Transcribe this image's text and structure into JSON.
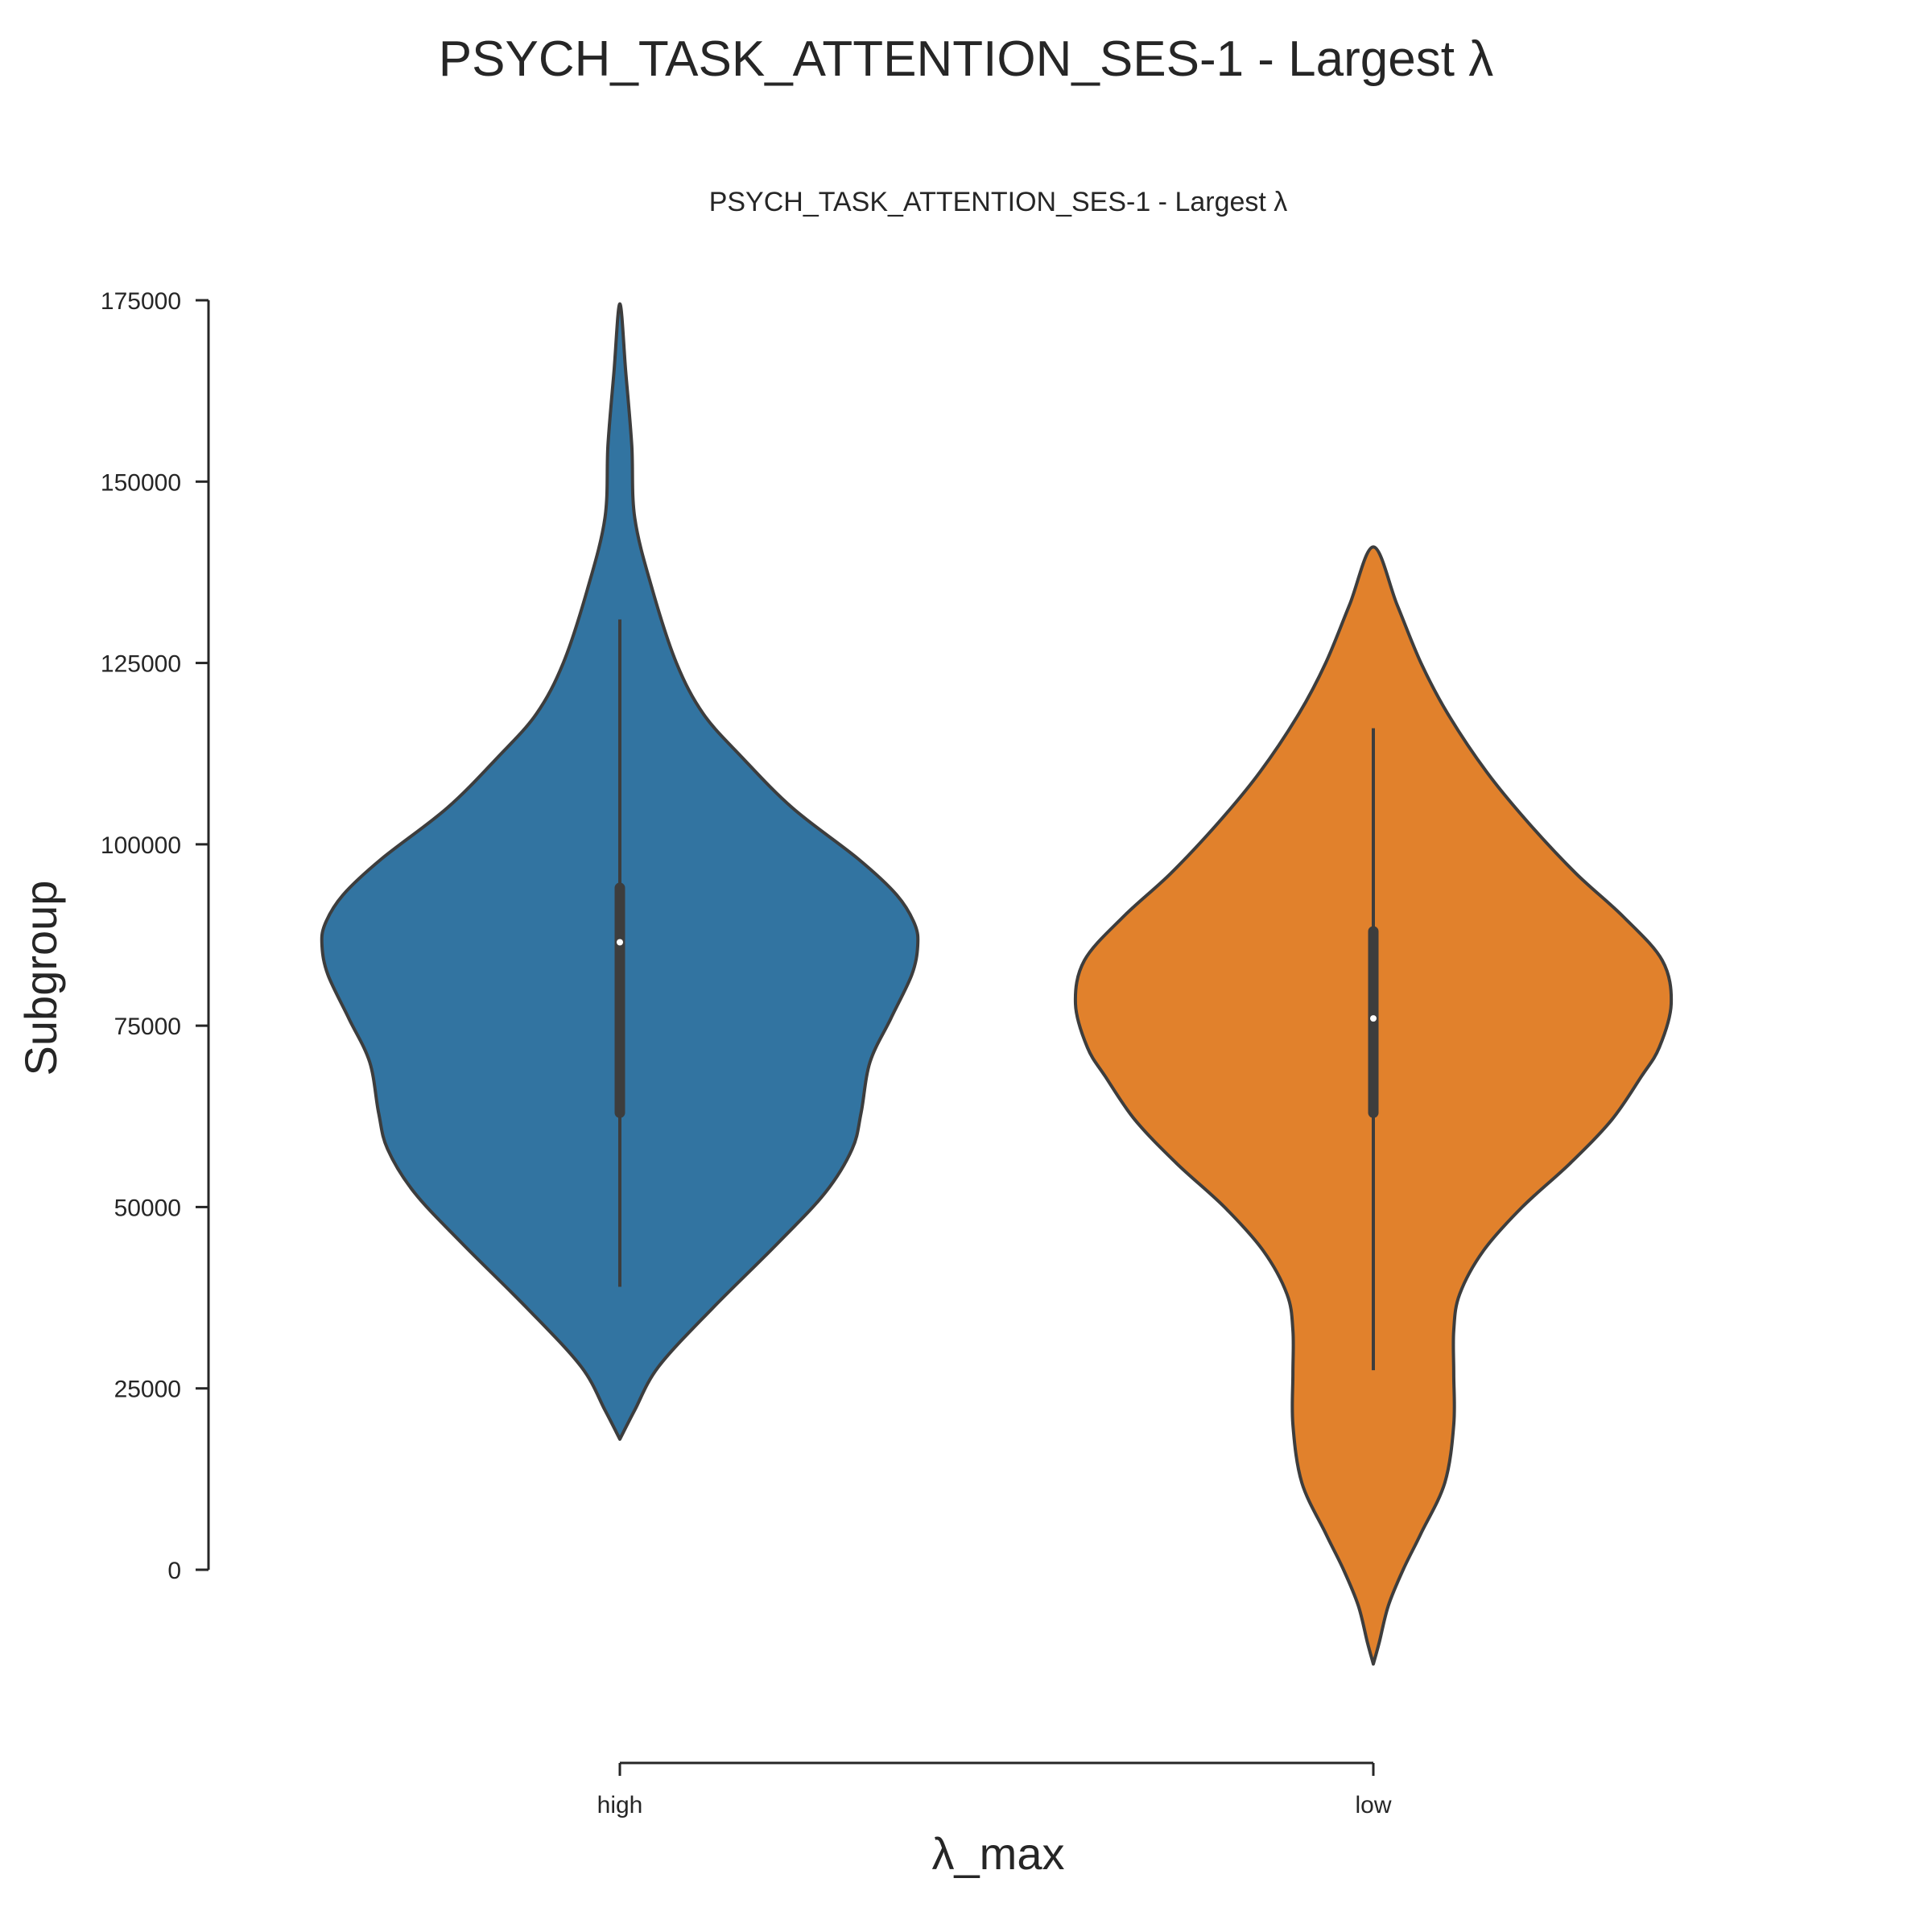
{
  "figure_title": "PSYCH_TASK_ATTENTION_SES-1 - Largest λ",
  "chart_data": {
    "type": "violin",
    "title": "PSYCH_TASK_ATTENTION_SES-1 - Largest λ",
    "xlabel": "λ_max",
    "ylabel": "Subgroup",
    "categories": [
      "high",
      "low"
    ],
    "ylim": [
      0,
      175000
    ],
    "yticks": [
      0,
      25000,
      50000,
      75000,
      100000,
      125000,
      150000,
      175000
    ],
    "grid": false,
    "legend": "none",
    "violins": [
      {
        "category": "high",
        "color": "#3274a1",
        "min_extent": 18000,
        "max_extent": 174500,
        "whisker_low": 39000,
        "q1": 63000,
        "median": 86500,
        "q3": 94000,
        "whisker_high": 131000,
        "density_profile": [
          [
            18000,
            0.0
          ],
          [
            22000,
            0.05
          ],
          [
            28000,
            0.13
          ],
          [
            36000,
            0.31
          ],
          [
            45000,
            0.53
          ],
          [
            52000,
            0.69
          ],
          [
            58000,
            0.78
          ],
          [
            63000,
            0.81
          ],
          [
            70000,
            0.84
          ],
          [
            76000,
            0.91
          ],
          [
            82000,
            0.98
          ],
          [
            86000,
            1.0
          ],
          [
            89000,
            0.99
          ],
          [
            93000,
            0.93
          ],
          [
            98000,
            0.8
          ],
          [
            105000,
            0.58
          ],
          [
            112000,
            0.41
          ],
          [
            118000,
            0.28
          ],
          [
            125000,
            0.19
          ],
          [
            135000,
            0.11
          ],
          [
            145000,
            0.05
          ],
          [
            155000,
            0.04
          ],
          [
            165000,
            0.02
          ],
          [
            174500,
            0.0
          ]
        ]
      },
      {
        "category": "low",
        "color": "#e1812c",
        "min_extent": -13000,
        "max_extent": 141000,
        "whisker_low": 27500,
        "q1": 63000,
        "median": 76000,
        "q3": 88000,
        "whisker_high": 116000,
        "density_profile": [
          [
            -13000,
            0.0
          ],
          [
            -10000,
            0.02
          ],
          [
            -5000,
            0.05
          ],
          [
            0,
            0.1
          ],
          [
            5000,
            0.16
          ],
          [
            12000,
            0.24
          ],
          [
            20000,
            0.27
          ],
          [
            27000,
            0.27
          ],
          [
            33000,
            0.27
          ],
          [
            38000,
            0.29
          ],
          [
            44000,
            0.37
          ],
          [
            50000,
            0.5
          ],
          [
            56000,
            0.66
          ],
          [
            62000,
            0.8
          ],
          [
            68000,
            0.9
          ],
          [
            72000,
            0.96
          ],
          [
            78000,
            1.0
          ],
          [
            84000,
            0.97
          ],
          [
            90000,
            0.84
          ],
          [
            96000,
            0.68
          ],
          [
            103000,
            0.52
          ],
          [
            110000,
            0.38
          ],
          [
            118000,
            0.25
          ],
          [
            125000,
            0.16
          ],
          [
            133000,
            0.08
          ],
          [
            141000,
            0.0
          ]
        ]
      }
    ]
  }
}
